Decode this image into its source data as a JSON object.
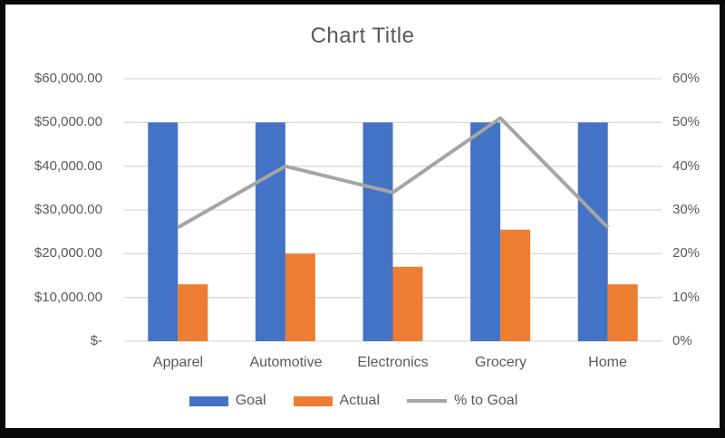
{
  "window": {
    "frame_color": "#0a0a0a",
    "background": "#ffffff"
  },
  "chart_data": {
    "type": "combo",
    "title": "Chart Title",
    "categories": [
      "Apparel",
      "Automotive",
      "Electronics",
      "Grocery",
      "Home"
    ],
    "series": [
      {
        "name": "Goal",
        "type": "bar",
        "color": "#4472C4",
        "axis": "left",
        "values": [
          50000,
          50000,
          50000,
          50000,
          50000
        ]
      },
      {
        "name": "Actual",
        "type": "bar",
        "color": "#ED7D31",
        "axis": "left",
        "values": [
          13000,
          20000,
          17000,
          25500,
          13000
        ]
      },
      {
        "name": "% to Goal",
        "type": "line",
        "color": "#A5A5A5",
        "axis": "right",
        "values": [
          0.26,
          0.4,
          0.34,
          0.51,
          0.26
        ]
      }
    ],
    "left_axis": {
      "min": 0,
      "max": 60000,
      "tick_step": 10000,
      "ticks": [
        "$60,000.00",
        "$50,000.00",
        "$40,000.00",
        "$30,000.00",
        "$20,000.00",
        "$10,000.00",
        "$-"
      ]
    },
    "right_axis": {
      "min": 0,
      "max": 0.6,
      "tick_step": 0.1,
      "ticks": [
        "60%",
        "50%",
        "40%",
        "30%",
        "20%",
        "10%",
        "0%"
      ]
    },
    "grid": true,
    "gridline_color": "#D9D9D9",
    "legend_position": "bottom",
    "text_color": "#595959"
  }
}
